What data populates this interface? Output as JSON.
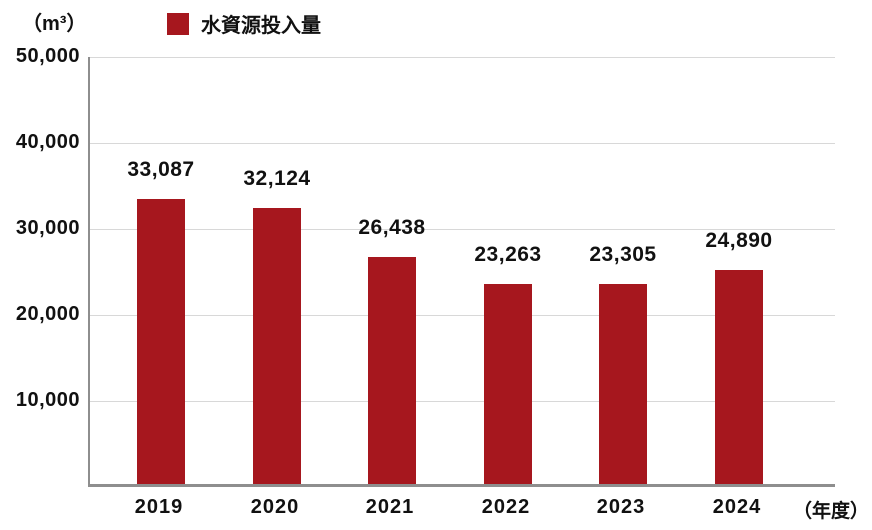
{
  "unit_label": "（m³）",
  "legend": {
    "label": "水資源投入量",
    "swatch_color": "#a6171e"
  },
  "x_axis_suffix": "（年度）",
  "colors": {
    "bar": "#a6171e",
    "gridline": "#d8d8d8",
    "axis": "#8e8e8e",
    "text": "#111111"
  },
  "chart_data": {
    "type": "bar",
    "title": "水資源投入量",
    "unit": "m³",
    "categories": [
      "2019",
      "2020",
      "2021",
      "2022",
      "2023",
      "2024"
    ],
    "values": [
      33087,
      32124,
      26438,
      23263,
      23305,
      24890
    ],
    "value_labels": [
      "33,087",
      "32,124",
      "26,438",
      "23,263",
      "23,305",
      "24,890"
    ],
    "series_name": "水資源投入量",
    "xlabel": "年度",
    "ylabel": "m³",
    "ylim": [
      0,
      50000
    ],
    "ytick_interval": 10000,
    "ytick_labels": [
      "10,000",
      "20,000",
      "30,000",
      "40,000",
      "50,000"
    ],
    "grid": true,
    "legend_position": "top",
    "bar_color": "#a6171e"
  }
}
